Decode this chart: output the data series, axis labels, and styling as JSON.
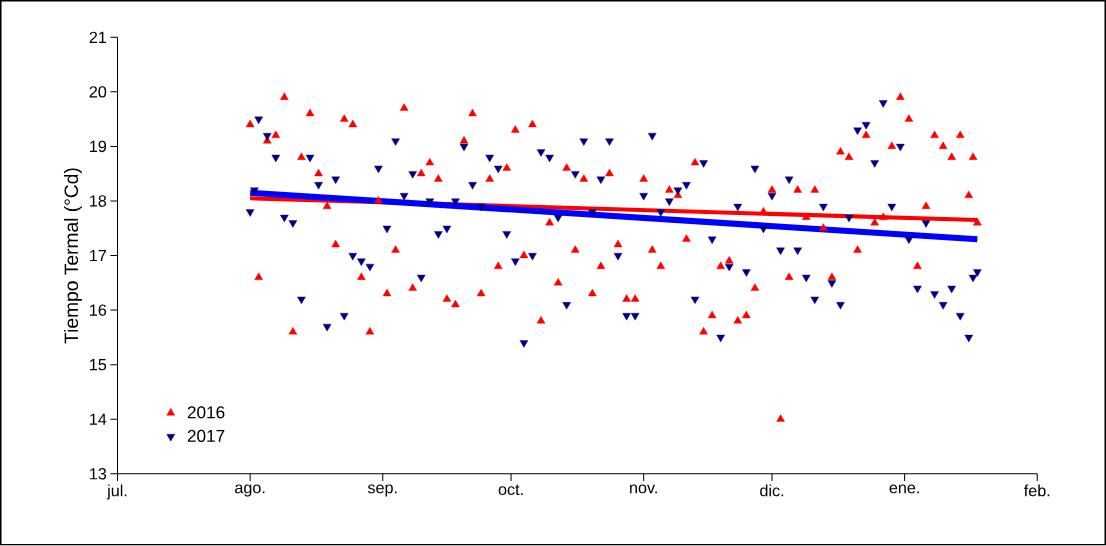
{
  "chart_data": {
    "type": "scatter",
    "ylabel": "Tiempo Termal (°Cd)",
    "xlim": [
      "2016-07-01",
      "2017-02-01"
    ],
    "xticks": [
      {
        "value": "2016-07-01",
        "label": "jul."
      },
      {
        "value": "2016-08-01",
        "label": "ago."
      },
      {
        "value": "2016-09-01",
        "label": "sep."
      },
      {
        "value": "2016-10-01",
        "label": "oct."
      },
      {
        "value": "2016-11-01",
        "label": "nov."
      },
      {
        "value": "2016-12-01",
        "label": "dic."
      },
      {
        "value": "2017-01-01",
        "label": "ene."
      },
      {
        "value": "2017-02-01",
        "label": "feb."
      }
    ],
    "ylim": [
      13,
      21
    ],
    "yticks": [
      13,
      14,
      15,
      16,
      17,
      18,
      19,
      20,
      21
    ],
    "legend": "bottom left",
    "series": [
      {
        "name": "2016",
        "color": "#ff0000",
        "marker": "triangle",
        "x": [
          "2016-08-01",
          "2016-08-03",
          "2016-08-05",
          "2016-08-07",
          "2016-08-09",
          "2016-08-11",
          "2016-08-13",
          "2016-08-15",
          "2016-08-17",
          "2016-08-19",
          "2016-08-21",
          "2016-08-23",
          "2016-08-25",
          "2016-08-27",
          "2016-08-29",
          "2016-08-31",
          "2016-09-02",
          "2016-09-04",
          "2016-09-06",
          "2016-09-08",
          "2016-09-10",
          "2016-09-12",
          "2016-09-14",
          "2016-09-16",
          "2016-09-18",
          "2016-09-20",
          "2016-09-22",
          "2016-09-24",
          "2016-09-26",
          "2016-09-28",
          "2016-09-30",
          "2016-10-02",
          "2016-10-04",
          "2016-10-06",
          "2016-10-08",
          "2016-10-10",
          "2016-10-12",
          "2016-10-14",
          "2016-10-16",
          "2016-10-18",
          "2016-10-20",
          "2016-10-22",
          "2016-10-24",
          "2016-10-26",
          "2016-10-28",
          "2016-10-30",
          "2016-11-01",
          "2016-11-03",
          "2016-11-05",
          "2016-11-07",
          "2016-11-09",
          "2016-11-11",
          "2016-11-13",
          "2016-11-15",
          "2016-11-17",
          "2016-11-19",
          "2016-11-21",
          "2016-11-23",
          "2016-11-25",
          "2016-11-27",
          "2016-11-29",
          "2016-12-01",
          "2016-12-03",
          "2016-12-05",
          "2016-12-07",
          "2016-12-09",
          "2016-12-11",
          "2016-12-13",
          "2016-12-15",
          "2016-12-17",
          "2016-12-19",
          "2016-12-21",
          "2016-12-23",
          "2016-12-25",
          "2016-12-27",
          "2016-12-29",
          "2016-12-31",
          "2017-01-02",
          "2017-01-04",
          "2017-01-06",
          "2017-01-08",
          "2017-01-10",
          "2017-01-12",
          "2017-01-14",
          "2017-01-16",
          "2017-01-17",
          "2017-01-18"
        ],
        "values": [
          19.4,
          16.6,
          19.1,
          19.2,
          19.9,
          15.6,
          18.8,
          19.6,
          18.5,
          17.9,
          17.2,
          19.5,
          19.4,
          16.6,
          15.6,
          18.0,
          16.3,
          17.1,
          19.7,
          16.4,
          18.5,
          18.7,
          18.4,
          16.2,
          16.1,
          19.1,
          19.6,
          16.3,
          18.4,
          16.8,
          18.6,
          19.3,
          17.0,
          19.4,
          15.8,
          17.6,
          16.5,
          18.6,
          17.1,
          18.4,
          16.3,
          16.8,
          18.5,
          17.2,
          16.2,
          16.2,
          18.4,
          17.1,
          16.8,
          18.2,
          18.1,
          17.3,
          18.7,
          15.6,
          15.9,
          16.8,
          16.9,
          15.8,
          15.9,
          16.4,
          17.8,
          18.2,
          14.0,
          16.6,
          18.2,
          17.7,
          18.2,
          17.5,
          16.6,
          18.9,
          18.8,
          17.1,
          19.2,
          17.6,
          17.7,
          19.0,
          19.9,
          19.5,
          16.8,
          17.9,
          19.2,
          19.0,
          18.8,
          19.2,
          18.1,
          18.8,
          17.6
        ]
      },
      {
        "name": "2017",
        "color": "#000080",
        "marker": "triangle",
        "x": [
          "2016-08-01",
          "2016-08-02",
          "2016-08-03",
          "2016-08-05",
          "2016-08-07",
          "2016-08-09",
          "2016-08-11",
          "2016-08-13",
          "2016-08-15",
          "2016-08-17",
          "2016-08-19",
          "2016-08-21",
          "2016-08-23",
          "2016-08-25",
          "2016-08-27",
          "2016-08-29",
          "2016-08-31",
          "2016-09-02",
          "2016-09-04",
          "2016-09-06",
          "2016-09-08",
          "2016-09-10",
          "2016-09-12",
          "2016-09-14",
          "2016-09-16",
          "2016-09-18",
          "2016-09-20",
          "2016-09-22",
          "2016-09-24",
          "2016-09-26",
          "2016-09-28",
          "2016-09-30",
          "2016-10-02",
          "2016-10-04",
          "2016-10-06",
          "2016-10-08",
          "2016-10-10",
          "2016-10-12",
          "2016-10-14",
          "2016-10-16",
          "2016-10-18",
          "2016-10-20",
          "2016-10-22",
          "2016-10-24",
          "2016-10-26",
          "2016-10-28",
          "2016-10-30",
          "2016-11-01",
          "2016-11-03",
          "2016-11-05",
          "2016-11-07",
          "2016-11-09",
          "2016-11-11",
          "2016-11-13",
          "2016-11-15",
          "2016-11-17",
          "2016-11-19",
          "2016-11-21",
          "2016-11-23",
          "2016-11-25",
          "2016-11-27",
          "2016-11-29",
          "2016-12-01",
          "2016-12-03",
          "2016-12-05",
          "2016-12-07",
          "2016-12-09",
          "2016-12-11",
          "2016-12-13",
          "2016-12-15",
          "2016-12-17",
          "2016-12-19",
          "2016-12-21",
          "2016-12-23",
          "2016-12-25",
          "2016-12-27",
          "2016-12-29",
          "2016-12-31",
          "2017-01-02",
          "2017-01-04",
          "2017-01-06",
          "2017-01-08",
          "2017-01-10",
          "2017-01-12",
          "2017-01-14",
          "2017-01-16",
          "2017-01-17",
          "2017-01-18"
        ],
        "values": [
          17.8,
          18.2,
          19.5,
          19.2,
          18.8,
          17.7,
          17.6,
          16.2,
          18.8,
          18.3,
          15.7,
          18.4,
          15.9,
          17.0,
          16.9,
          16.8,
          18.6,
          17.5,
          19.1,
          18.1,
          18.5,
          16.6,
          18.0,
          17.4,
          17.5,
          18.0,
          19.0,
          18.3,
          17.9,
          18.8,
          18.6,
          17.4,
          16.9,
          15.4,
          17.0,
          18.9,
          18.8,
          17.7,
          16.1,
          18.5,
          19.1,
          17.8,
          18.4,
          19.1,
          17.0,
          15.9,
          15.9,
          18.1,
          19.2,
          17.8,
          18.0,
          18.2,
          18.3,
          16.2,
          18.7,
          17.3,
          15.5,
          16.8,
          17.9,
          16.7,
          18.6,
          17.5,
          18.1,
          17.1,
          18.4,
          17.1,
          16.6,
          16.2,
          17.9,
          16.5,
          16.1,
          17.7,
          19.3,
          19.4,
          18.7,
          19.8,
          17.9,
          19.0,
          17.3,
          16.4,
          17.6,
          16.3,
          16.1,
          16.4,
          15.9,
          15.5,
          16.6,
          16.7
        ]
      },
      {
        "type": "line",
        "color": "#ff0000",
        "marker": "none",
        "x": [
          "2016-08-01",
          "2017-01-18"
        ],
        "values": [
          18.05,
          17.65
        ]
      },
      {
        "type": "line",
        "color": "#0000ff",
        "marker": "none",
        "x": [
          "2016-08-01",
          "2017-01-18"
        ],
        "values": [
          18.15,
          17.3
        ]
      }
    ]
  }
}
